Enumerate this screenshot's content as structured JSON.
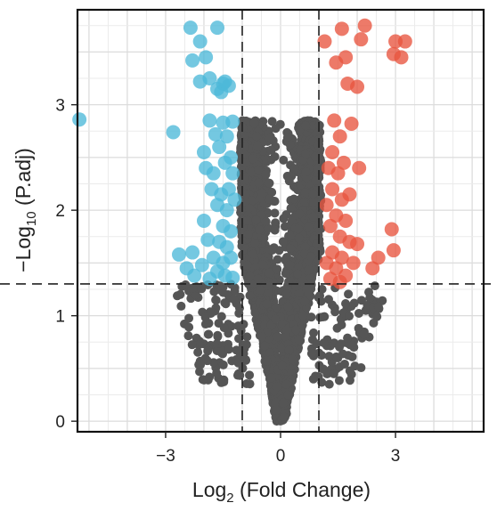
{
  "chart_data": {
    "type": "scatter",
    "title": "",
    "xlabel_main": "Log",
    "xlabel_sub": "2",
    "xlabel_rest": " (Fold Change)",
    "ylabel_main": "−Log",
    "ylabel_sub": "10",
    "ylabel_rest": " (P.adj)",
    "xlim": [
      -5.3,
      5.3
    ],
    "ylim": [
      -0.1,
      3.9
    ],
    "x_ticks": [
      -3,
      0,
      3
    ],
    "x_tick_labels": [
      "−3",
      "0",
      "3"
    ],
    "y_ticks": [
      0,
      1,
      2,
      3
    ],
    "y_tick_labels": [
      "0",
      "1",
      "2",
      "3"
    ],
    "grid": true,
    "legend": "none",
    "thresholds": {
      "log2fc": [
        -1,
        1
      ],
      "padj_neglog10": 1.301
    },
    "colors": {
      "down": "#4db8d9",
      "up": "#e8553f",
      "ns": "#555555",
      "background": "#ffffff"
    },
    "series": [
      {
        "group": "down",
        "points": [
          [
            -2.35,
            3.73
          ],
          [
            -1.65,
            3.73
          ],
          [
            -2.1,
            3.6
          ],
          [
            -1.95,
            3.45
          ],
          [
            -2.3,
            3.42
          ],
          [
            -2.1,
            3.22
          ],
          [
            -1.85,
            3.25
          ],
          [
            -1.5,
            3.2
          ],
          [
            -1.35,
            3.18
          ],
          [
            -1.55,
            3.12
          ],
          [
            -1.65,
            3.15
          ],
          [
            -1.45,
            3.22
          ],
          [
            -5.25,
            2.86
          ],
          [
            -2.8,
            2.74
          ],
          [
            -1.85,
            2.85
          ],
          [
            -1.5,
            2.83
          ],
          [
            -1.25,
            2.84
          ],
          [
            -1.7,
            2.72
          ],
          [
            -1.4,
            2.7
          ],
          [
            -2.0,
            2.55
          ],
          [
            -1.6,
            2.6
          ],
          [
            -1.3,
            2.5
          ],
          [
            -1.95,
            2.4
          ],
          [
            -1.75,
            2.35
          ],
          [
            -1.45,
            2.45
          ],
          [
            -1.25,
            2.35
          ],
          [
            -1.8,
            2.2
          ],
          [
            -1.55,
            2.15
          ],
          [
            -1.35,
            2.2
          ],
          [
            -1.65,
            2.05
          ],
          [
            -1.4,
            2.0
          ],
          [
            -1.2,
            2.1
          ],
          [
            -2.0,
            1.9
          ],
          [
            -1.5,
            1.85
          ],
          [
            -1.3,
            1.8
          ],
          [
            -1.9,
            1.72
          ],
          [
            -1.6,
            1.7
          ],
          [
            -1.4,
            1.65
          ],
          [
            -2.65,
            1.58
          ],
          [
            -2.3,
            1.6
          ],
          [
            -1.75,
            1.55
          ],
          [
            -1.5,
            1.5
          ],
          [
            -1.3,
            1.55
          ],
          [
            -2.45,
            1.45
          ],
          [
            -2.05,
            1.48
          ],
          [
            -1.65,
            1.42
          ],
          [
            -1.45,
            1.38
          ],
          [
            -2.25,
            1.38
          ],
          [
            -1.85,
            1.35
          ],
          [
            -1.25,
            1.36
          ]
        ]
      },
      {
        "group": "up",
        "points": [
          [
            1.15,
            3.6
          ],
          [
            1.6,
            3.72
          ],
          [
            2.2,
            3.75
          ],
          [
            2.1,
            3.62
          ],
          [
            3.0,
            3.6
          ],
          [
            3.25,
            3.6
          ],
          [
            2.95,
            3.48
          ],
          [
            3.15,
            3.45
          ],
          [
            1.7,
            3.45
          ],
          [
            1.45,
            3.4
          ],
          [
            1.75,
            3.2
          ],
          [
            2.0,
            3.17
          ],
          [
            1.4,
            2.85
          ],
          [
            1.85,
            2.82
          ],
          [
            1.55,
            2.7
          ],
          [
            1.35,
            2.55
          ],
          [
            1.65,
            2.45
          ],
          [
            1.25,
            2.4
          ],
          [
            1.5,
            2.35
          ],
          [
            2.05,
            2.4
          ],
          [
            1.35,
            2.2
          ],
          [
            1.6,
            2.1
          ],
          [
            1.8,
            2.15
          ],
          [
            1.2,
            2.05
          ],
          [
            1.45,
            1.95
          ],
          [
            1.7,
            1.9
          ],
          [
            1.3,
            1.85
          ],
          [
            1.55,
            1.75
          ],
          [
            1.8,
            1.7
          ],
          [
            2.0,
            1.68
          ],
          [
            2.9,
            1.82
          ],
          [
            1.35,
            1.6
          ],
          [
            1.6,
            1.55
          ],
          [
            2.95,
            1.62
          ],
          [
            1.2,
            1.5
          ],
          [
            1.45,
            1.45
          ],
          [
            1.9,
            1.5
          ],
          [
            2.55,
            1.55
          ],
          [
            2.4,
            1.45
          ],
          [
            1.7,
            1.38
          ],
          [
            1.3,
            1.35
          ],
          [
            1.55,
            1.32
          ]
        ]
      }
    ]
  }
}
